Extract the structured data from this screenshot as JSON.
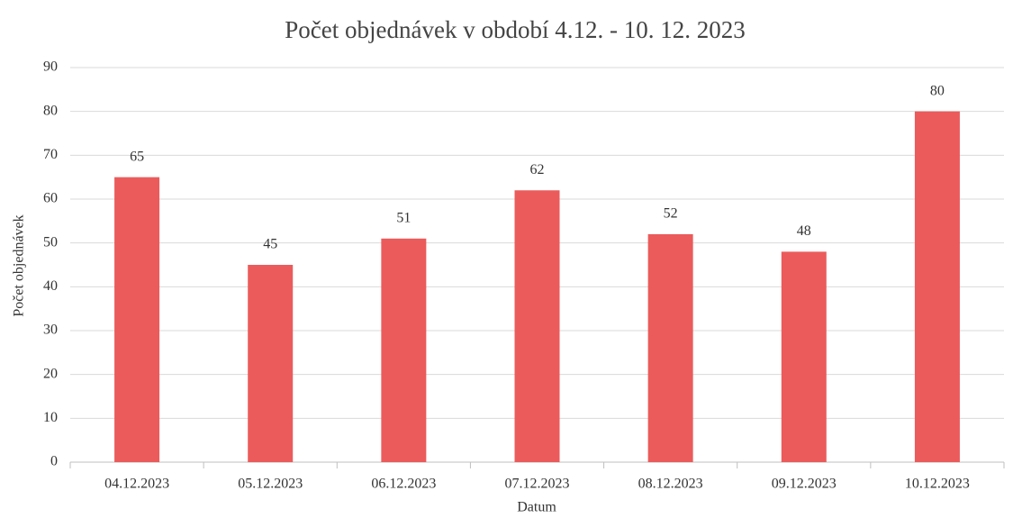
{
  "chart_data": {
    "type": "bar",
    "title": "Počet objednávek v období 4.12. - 10. 12. 2023",
    "x_label": "Datum",
    "y_label": "Počet objednávek",
    "categories": [
      "04.12.2023",
      "05.12.2023",
      "06.12.2023",
      "07.12.2023",
      "08.12.2023",
      "09.12.2023",
      "10.12.2023"
    ],
    "values": [
      65,
      45,
      51,
      62,
      52,
      48,
      80
    ],
    "color": "#eb5b5b",
    "ylim": [
      0,
      90
    ],
    "yticks": [
      0,
      10,
      20,
      30,
      40,
      50,
      60,
      70,
      80,
      90
    ],
    "grid": true,
    "data_labels": true
  }
}
